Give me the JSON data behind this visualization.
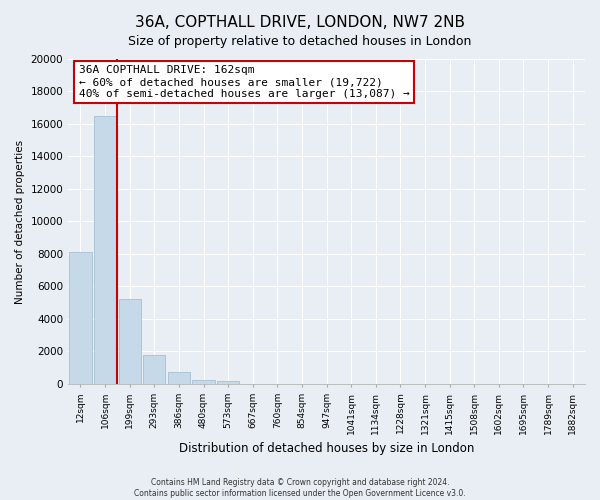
{
  "title": "36A, COPTHALL DRIVE, LONDON, NW7 2NB",
  "subtitle": "Size of property relative to detached houses in London",
  "xlabel": "Distribution of detached houses by size in London",
  "ylabel": "Number of detached properties",
  "bar_labels": [
    "12sqm",
    "106sqm",
    "199sqm",
    "293sqm",
    "386sqm",
    "480sqm",
    "573sqm",
    "667sqm",
    "760sqm",
    "854sqm",
    "947sqm",
    "1041sqm",
    "1134sqm",
    "1228sqm",
    "1321sqm",
    "1415sqm",
    "1508sqm",
    "1602sqm",
    "1695sqm",
    "1789sqm",
    "1882sqm"
  ],
  "bar_values": [
    8100,
    16500,
    5250,
    1800,
    750,
    250,
    200,
    0,
    0,
    0,
    0,
    0,
    0,
    0,
    0,
    0,
    0,
    0,
    0,
    0,
    0
  ],
  "bar_color": "#c6d9e8",
  "bar_edge_color": "#9ab8ce",
  "ylim": [
    0,
    20000
  ],
  "yticks": [
    0,
    2000,
    4000,
    6000,
    8000,
    10000,
    12000,
    14000,
    16000,
    18000,
    20000
  ],
  "vline_color": "#cc0000",
  "annotation_title": "36A COPTHALL DRIVE: 162sqm",
  "annotation_line1": "← 60% of detached houses are smaller (19,722)",
  "annotation_line2": "40% of semi-detached houses are larger (13,087) →",
  "annotation_box_color": "#ffffff",
  "annotation_box_edge": "#cc0000",
  "footer_line1": "Contains HM Land Registry data © Crown copyright and database right 2024.",
  "footer_line2": "Contains public sector information licensed under the Open Government Licence v3.0.",
  "background_color": "#e8eef4",
  "plot_background": "#e8eef4",
  "grid_color": "#ffffff",
  "title_fontsize": 11,
  "subtitle_fontsize": 9
}
